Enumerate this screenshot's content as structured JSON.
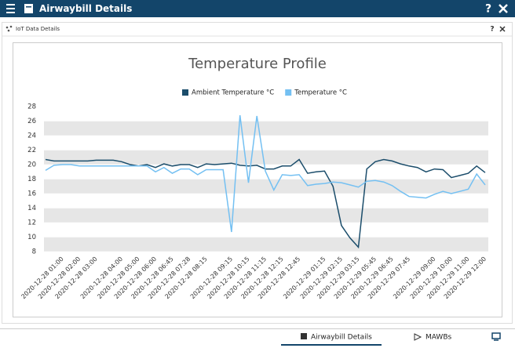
{
  "header": {
    "title": "Airwaybill Details",
    "help": "?"
  },
  "panel": {
    "title": "IoT Data Details",
    "help": "?"
  },
  "tabs": [
    "Airwaybill Details",
    "MAWBs"
  ],
  "chart_data": {
    "type": "line",
    "title": "Temperature Profile",
    "categories": [
      null,
      null,
      "2020-12-28 01:00",
      null,
      "2020-12-28 02:00",
      null,
      "2020-12-28 03:00",
      null,
      null,
      "2020-12-28 04:00",
      null,
      "2020-12-28 05:00",
      null,
      "2020-12-28 06:00",
      null,
      "2020-12-28 06:45",
      null,
      "2020-12-28 07:28",
      null,
      "2020-12-28 08:15",
      null,
      null,
      "2020-12-28 09:15",
      null,
      "2020-12-28 10:15",
      null,
      "2020-12-28 11:15",
      null,
      "2020-12-28 12:15",
      null,
      "2020-12-28 12:45",
      null,
      null,
      "2020-12-29 01:15",
      null,
      "2020-12-29 02:15",
      null,
      "2020-12-29 03:15",
      null,
      "2020-12-29 05:45",
      null,
      "2020-12-29 06:45",
      null,
      "2020-12-29 07:45",
      null,
      null,
      "2020-12-29 09:00",
      null,
      "2020-12-29 10:00",
      null,
      "2020-12-29 11:00",
      null,
      "2020-12-29 12:00"
    ],
    "series": [
      {
        "name": "Ambient Temperature °C",
        "color": "#1b4d6b",
        "values": [
          20.7,
          20.5,
          20.5,
          20.5,
          20.5,
          20.5,
          20.6,
          20.6,
          20.6,
          20.4,
          20.0,
          19.8,
          20.0,
          19.6,
          20.1,
          19.8,
          20.0,
          20.0,
          19.6,
          20.1,
          20.0,
          20.1,
          20.2,
          19.9,
          19.8,
          19.9,
          19.4,
          19.4,
          19.8,
          19.8,
          20.7,
          18.8,
          19.0,
          19.1,
          17.0,
          11.6,
          9.9,
          8.6,
          19.4,
          20.4,
          20.7,
          20.5,
          20.1,
          19.8,
          19.6,
          19.0,
          19.4,
          19.3,
          18.2,
          18.5,
          18.8,
          19.8,
          18.9
        ]
      },
      {
        "name": "Temperature °C",
        "color": "#74c0f2",
        "values": [
          19.2,
          19.9,
          20.0,
          20.0,
          19.8,
          19.8,
          19.8,
          19.8,
          19.8,
          19.8,
          19.8,
          19.8,
          19.8,
          19.0,
          19.6,
          18.8,
          19.4,
          19.4,
          18.6,
          19.3,
          19.3,
          19.3,
          10.7,
          26.8,
          17.5,
          26.7,
          19.1,
          16.5,
          18.6,
          18.5,
          18.6,
          17.1,
          17.3,
          17.4,
          17.6,
          17.5,
          17.2,
          16.9,
          17.7,
          17.8,
          17.6,
          17.1,
          16.3,
          15.6,
          15.5,
          15.4,
          15.9,
          16.3,
          16.0,
          16.3,
          16.6,
          18.7,
          17.2
        ]
      }
    ],
    "ylim": [
      8,
      28
    ],
    "yticks": [
      8,
      10,
      12,
      14,
      16,
      18,
      20,
      22,
      24,
      26,
      28
    ],
    "grid": true,
    "legend": "top"
  }
}
